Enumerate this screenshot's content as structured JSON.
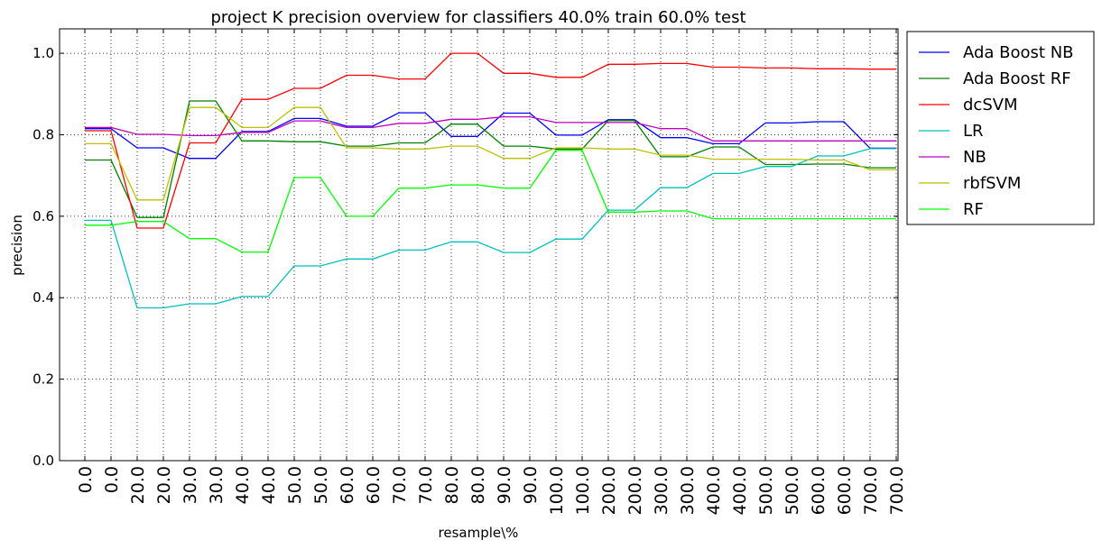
{
  "chart_data": {
    "type": "line",
    "title": "project K precision overview for classifiers 40.0% train 60.0% test",
    "xlabel": "resample\\%",
    "ylabel": "precision",
    "ylim": [
      0.0,
      1.06
    ],
    "yticks": [
      "0.0",
      "0.2",
      "0.4",
      "0.6",
      "0.8",
      "1.0"
    ],
    "ytick_values": [
      0.0,
      0.2,
      0.4,
      0.6,
      0.8,
      1.0
    ],
    "categories": [
      "0.0",
      "0.0",
      "20.0",
      "20.0",
      "30.0",
      "30.0",
      "40.0",
      "40.0",
      "50.0",
      "50.0",
      "60.0",
      "60.0",
      "70.0",
      "70.0",
      "80.0",
      "80.0",
      "90.0",
      "90.0",
      "100.0",
      "100.0",
      "200.0",
      "200.0",
      "300.0",
      "300.0",
      "400.0",
      "400.0",
      "500.0",
      "500.0",
      "600.0",
      "600.0",
      "700.0",
      "700.0"
    ],
    "grid": true,
    "legend_position": "outside-right",
    "series": [
      {
        "name": "Ada Boost NB",
        "color": "#0000ff",
        "values": [
          0.815,
          0.815,
          0.768,
          0.768,
          0.742,
          0.742,
          0.808,
          0.808,
          0.84,
          0.84,
          0.821,
          0.821,
          0.854,
          0.854,
          0.796,
          0.796,
          0.853,
          0.853,
          0.799,
          0.799,
          0.837,
          0.837,
          0.793,
          0.793,
          0.778,
          0.778,
          0.829,
          0.829,
          0.832,
          0.832,
          0.767,
          0.767
        ]
      },
      {
        "name": "Ada Boost RF",
        "color": "#008000",
        "values": [
          0.738,
          0.738,
          0.597,
          0.597,
          0.883,
          0.883,
          0.785,
          0.785,
          0.783,
          0.783,
          0.772,
          0.772,
          0.78,
          0.78,
          0.826,
          0.826,
          0.772,
          0.772,
          0.765,
          0.765,
          0.835,
          0.835,
          0.746,
          0.746,
          0.77,
          0.77,
          0.727,
          0.727,
          0.728,
          0.728,
          0.719,
          0.719
        ]
      },
      {
        "name": "dcSVM",
        "color": "#ff0000",
        "values": [
          0.81,
          0.81,
          0.571,
          0.571,
          0.78,
          0.78,
          0.887,
          0.887,
          0.914,
          0.914,
          0.946,
          0.946,
          0.937,
          0.937,
          1.0,
          1.0,
          0.951,
          0.951,
          0.941,
          0.941,
          0.973,
          0.973,
          0.975,
          0.975,
          0.966,
          0.966,
          0.964,
          0.964,
          0.962,
          0.962,
          0.961,
          0.961
        ]
      },
      {
        "name": "LR",
        "color": "#00bfbf",
        "values": [
          0.59,
          0.59,
          0.375,
          0.375,
          0.385,
          0.385,
          0.403,
          0.403,
          0.478,
          0.478,
          0.495,
          0.495,
          0.517,
          0.517,
          0.537,
          0.537,
          0.511,
          0.511,
          0.544,
          0.544,
          0.615,
          0.615,
          0.67,
          0.67,
          0.705,
          0.705,
          0.722,
          0.722,
          0.748,
          0.748,
          0.766,
          0.766
        ]
      },
      {
        "name": "NB",
        "color": "#bf00bf",
        "values": [
          0.818,
          0.818,
          0.801,
          0.801,
          0.798,
          0.798,
          0.806,
          0.806,
          0.834,
          0.834,
          0.818,
          0.818,
          0.828,
          0.828,
          0.838,
          0.838,
          0.844,
          0.844,
          0.83,
          0.83,
          0.83,
          0.83,
          0.815,
          0.815,
          0.785,
          0.785,
          0.785,
          0.785,
          0.785,
          0.785,
          0.785,
          0.785
        ]
      },
      {
        "name": "rbfSVM",
        "color": "#bfbf00",
        "values": [
          0.778,
          0.778,
          0.64,
          0.64,
          0.867,
          0.867,
          0.818,
          0.818,
          0.867,
          0.867,
          0.768,
          0.768,
          0.765,
          0.765,
          0.772,
          0.772,
          0.742,
          0.742,
          0.768,
          0.768,
          0.765,
          0.765,
          0.75,
          0.75,
          0.74,
          0.74,
          0.74,
          0.74,
          0.738,
          0.738,
          0.714,
          0.714
        ]
      },
      {
        "name": "RF",
        "color": "#00ff00",
        "values": [
          0.578,
          0.578,
          0.587,
          0.587,
          0.545,
          0.545,
          0.512,
          0.512,
          0.695,
          0.695,
          0.6,
          0.6,
          0.669,
          0.669,
          0.677,
          0.677,
          0.669,
          0.669,
          0.762,
          0.762,
          0.61,
          0.61,
          0.613,
          0.613,
          0.594,
          0.594,
          0.594,
          0.594,
          0.594,
          0.594,
          0.594,
          0.594
        ]
      }
    ]
  }
}
